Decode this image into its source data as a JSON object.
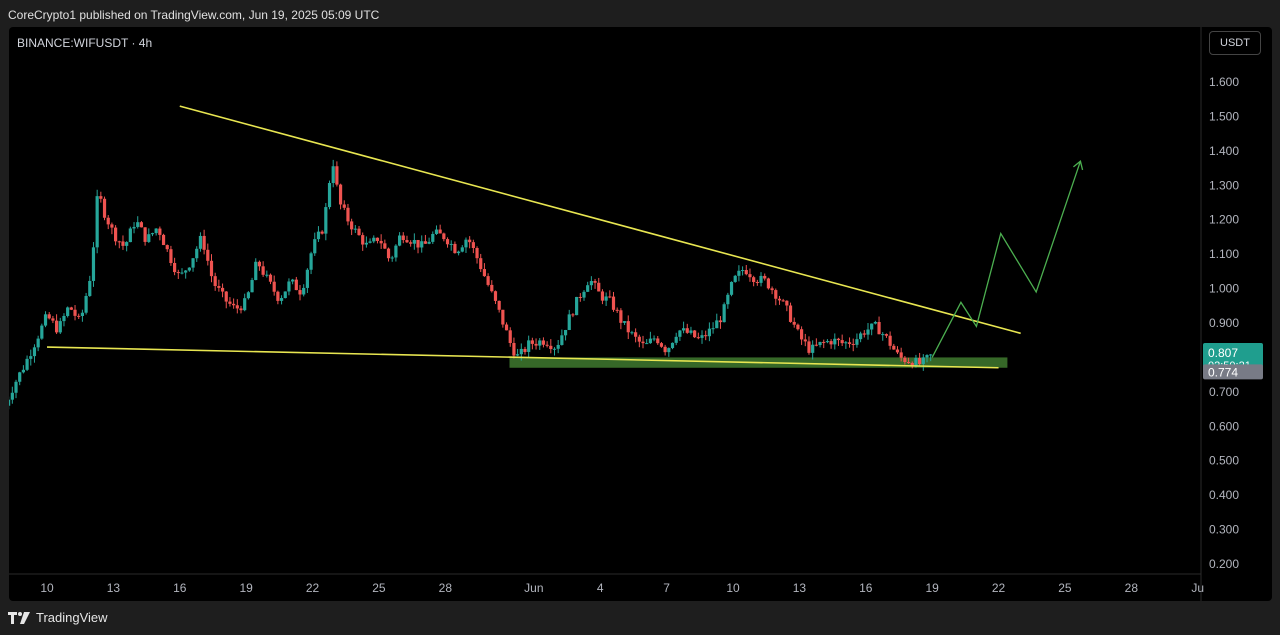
{
  "header": {
    "published": "CoreCrypto1 published on TradingView.com, Jun 19, 2025 05:09 UTC"
  },
  "chart": {
    "symbol": "BINANCE:WIFUSDT · 4h",
    "currency": "USDT"
  },
  "footer": {
    "brand": "TradingView"
  },
  "chart_data": {
    "type": "candlestick",
    "symbol": "BINANCE:WIFUSDT",
    "interval": "4h",
    "ylim": [
      0.17,
      1.7
    ],
    "y_ticks": [
      "1.600",
      "1.500",
      "1.400",
      "1.300",
      "1.200",
      "1.100",
      "1.000",
      "0.900",
      "0.800",
      "0.700",
      "0.600",
      "0.500",
      "0.400",
      "0.300",
      "0.200"
    ],
    "x_ticks": [
      "10",
      "13",
      "16",
      "19",
      "22",
      "25",
      "28",
      "Jun",
      "4",
      "7",
      "10",
      "13",
      "16",
      "19",
      "22",
      "25",
      "28",
      "Ju"
    ],
    "x_tick_days": [
      10,
      13,
      16,
      19,
      22,
      25,
      28,
      32,
      35,
      38,
      41,
      44,
      47,
      50,
      53,
      56,
      59,
      62
    ],
    "close_path": [
      [
        8.1,
        0.66
      ],
      [
        8.5,
        0.72
      ],
      [
        9.0,
        0.78
      ],
      [
        9.5,
        0.85
      ],
      [
        10.0,
        0.92
      ],
      [
        10.5,
        0.88
      ],
      [
        11.0,
        0.95
      ],
      [
        11.5,
        0.9
      ],
      [
        12.0,
        1.05
      ],
      [
        12.3,
        1.28
      ],
      [
        12.6,
        1.22
      ],
      [
        13.0,
        1.16
      ],
      [
        13.5,
        1.12
      ],
      [
        14.0,
        1.2
      ],
      [
        14.5,
        1.14
      ],
      [
        15.0,
        1.18
      ],
      [
        15.5,
        1.1
      ],
      [
        16.0,
        1.03
      ],
      [
        16.5,
        1.08
      ],
      [
        17.0,
        1.15
      ],
      [
        17.5,
        1.02
      ],
      [
        18.0,
        0.97
      ],
      [
        18.5,
        0.94
      ],
      [
        19.0,
        0.96
      ],
      [
        19.5,
        1.08
      ],
      [
        20.0,
        1.02
      ],
      [
        20.5,
        0.97
      ],
      [
        21.0,
        1.02
      ],
      [
        21.5,
        0.99
      ],
      [
        22.0,
        1.12
      ],
      [
        22.5,
        1.18
      ],
      [
        22.9,
        1.38
      ],
      [
        23.2,
        1.25
      ],
      [
        23.6,
        1.2
      ],
      [
        24.0,
        1.16
      ],
      [
        24.5,
        1.12
      ],
      [
        25.0,
        1.15
      ],
      [
        25.5,
        1.08
      ],
      [
        26.0,
        1.16
      ],
      [
        26.5,
        1.14
      ],
      [
        27.0,
        1.12
      ],
      [
        27.5,
        1.16
      ],
      [
        28.0,
        1.15
      ],
      [
        28.5,
        1.11
      ],
      [
        29.0,
        1.15
      ],
      [
        29.5,
        1.08
      ],
      [
        30.0,
        1.0
      ],
      [
        30.5,
        0.92
      ],
      [
        31.0,
        0.83
      ],
      [
        31.3,
        0.8
      ],
      [
        31.8,
        0.84
      ],
      [
        32.5,
        0.85
      ],
      [
        33.0,
        0.83
      ],
      [
        33.5,
        0.9
      ],
      [
        34.0,
        0.97
      ],
      [
        34.5,
        1.03
      ],
      [
        35.0,
        0.98
      ],
      [
        35.5,
        0.96
      ],
      [
        36.0,
        0.9
      ],
      [
        36.5,
        0.86
      ],
      [
        37.0,
        0.83
      ],
      [
        37.5,
        0.86
      ],
      [
        38.0,
        0.82
      ],
      [
        38.5,
        0.88
      ],
      [
        39.0,
        0.87
      ],
      [
        39.5,
        0.85
      ],
      [
        40.0,
        0.88
      ],
      [
        40.5,
        0.92
      ],
      [
        41.0,
        1.02
      ],
      [
        41.5,
        1.06
      ],
      [
        42.0,
        1.03
      ],
      [
        42.5,
        1.02
      ],
      [
        43.0,
        0.98
      ],
      [
        43.5,
        0.93
      ],
      [
        44.0,
        0.86
      ],
      [
        44.5,
        0.82
      ],
      [
        45.0,
        0.84
      ],
      [
        45.5,
        0.85
      ],
      [
        46.0,
        0.84
      ],
      [
        46.5,
        0.85
      ],
      [
        47.0,
        0.88
      ],
      [
        47.5,
        0.89
      ],
      [
        48.0,
        0.85
      ],
      [
        48.5,
        0.8
      ],
      [
        49.0,
        0.79
      ],
      [
        49.5,
        0.78
      ],
      [
        50.0,
        0.807
      ]
    ],
    "resistance_line": [
      [
        16,
        1.53
      ],
      [
        54,
        0.87
      ]
    ],
    "support_line": [
      [
        10,
        0.83
      ],
      [
        53,
        0.77
      ]
    ],
    "support_zone": {
      "x": [
        30.9,
        53.4
      ],
      "y": [
        0.77,
        0.8
      ]
    },
    "projection_path": [
      [
        50.0,
        0.8
      ],
      [
        51.3,
        0.96
      ],
      [
        52.0,
        0.89
      ],
      [
        53.1,
        1.16
      ],
      [
        54.7,
        0.99
      ],
      [
        56.7,
        1.37
      ]
    ],
    "last_price": {
      "value": 0.807,
      "label": "0.807",
      "countdown": "02:50:21"
    },
    "prev_close": {
      "value": 0.774,
      "label": "0.774"
    }
  }
}
